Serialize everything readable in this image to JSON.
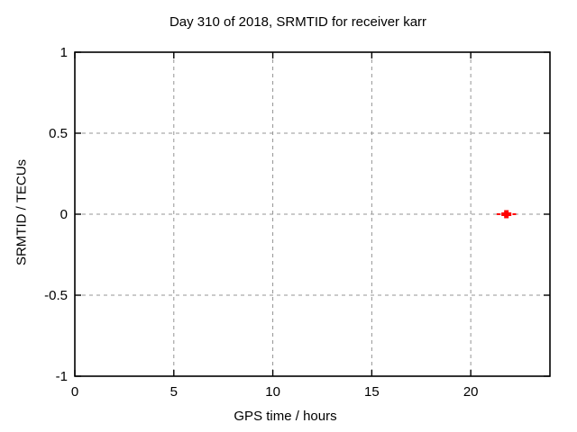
{
  "chart_data": {
    "type": "scatter",
    "title": "Day 310 of 2018, SRMTID for receiver karr",
    "xlabel": "GPS time / hours",
    "ylabel": "SRMTID / TECUs",
    "xlim": [
      0,
      24
    ],
    "ylim": [
      -1,
      1
    ],
    "xticks": [
      0,
      5,
      10,
      15,
      20
    ],
    "yticks": [
      -1,
      -0.5,
      0,
      0.5,
      1
    ],
    "grid": true,
    "legend_position": "none",
    "series": [
      {
        "name": "SRMTID",
        "marker": "plus-with-xerror",
        "color": "#ff0000",
        "points": [
          {
            "x": 21.8,
            "y": 0.0,
            "xerr": 0.4
          }
        ]
      }
    ],
    "colors": {
      "background": "#ffffff",
      "axis": "#000000",
      "text": "#000000",
      "grid": "#949494",
      "marker": "#ff0000"
    }
  }
}
